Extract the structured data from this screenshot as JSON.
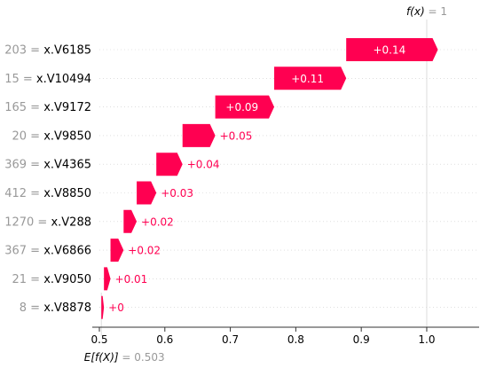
{
  "chart_data": {
    "type": "waterfall",
    "base_value": 0.503,
    "output_value": 1,
    "xlim": [
      0.5,
      1.08
    ],
    "xticks": [
      0.5,
      0.6,
      0.7,
      0.8,
      0.9,
      1.0
    ],
    "xtick_labels": [
      "0.5",
      "0.6",
      "0.7",
      "0.8",
      "0.9",
      "1.0"
    ],
    "fx_label": "f(x)",
    "fx_value_text": "= 1",
    "ex_label": "E[f(X)]",
    "ex_value_text": "= 0.503",
    "positive_color": "#ff0051",
    "features": [
      {
        "value": "203",
        "name": "x.V6185",
        "contribution": 0.14,
        "label": "+0.14"
      },
      {
        "value": "15",
        "name": "x.V10494",
        "contribution": 0.11,
        "label": "+0.11"
      },
      {
        "value": "165",
        "name": "x.V9172",
        "contribution": 0.09,
        "label": "+0.09"
      },
      {
        "value": "20",
        "name": "x.V9850",
        "contribution": 0.05,
        "label": "+0.05"
      },
      {
        "value": "369",
        "name": "x.V4365",
        "contribution": 0.04,
        "label": "+0.04"
      },
      {
        "value": "412",
        "name": "x.V8850",
        "contribution": 0.03,
        "label": "+0.03"
      },
      {
        "value": "1270",
        "name": "x.V288",
        "contribution": 0.02,
        "label": "+0.02"
      },
      {
        "value": "367",
        "name": "x.V6866",
        "contribution": 0.02,
        "label": "+0.02"
      },
      {
        "value": "21",
        "name": "x.V9050",
        "contribution": 0.01,
        "label": "+0.01"
      },
      {
        "value": "8",
        "name": "x.V8878",
        "contribution": 0.004,
        "label": "+0"
      }
    ]
  }
}
